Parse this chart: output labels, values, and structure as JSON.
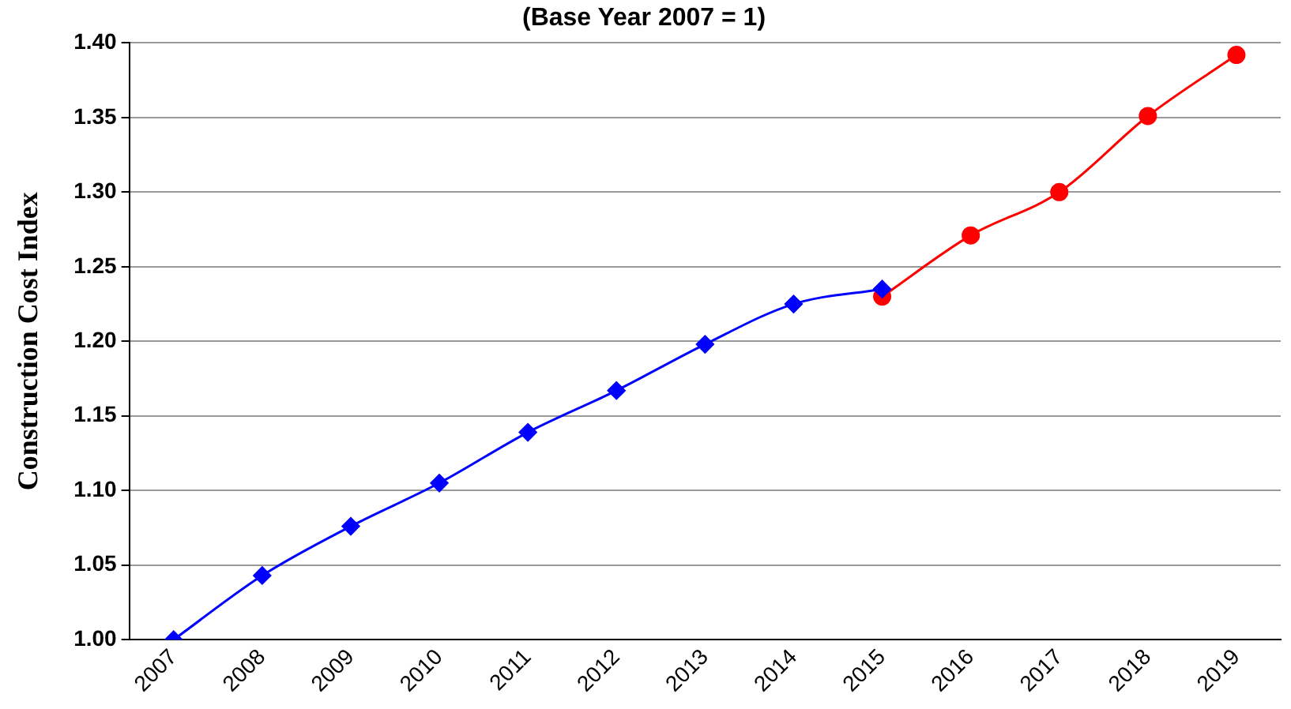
{
  "chart_data": {
    "type": "line",
    "title": "(Base Year 2007 = 1)",
    "ylabel": "Construction Cost Index",
    "categories": [
      "2007",
      "2008",
      "2009",
      "2010",
      "2011",
      "2012",
      "2013",
      "2014",
      "2015",
      "2016",
      "2017",
      "2018",
      "2019"
    ],
    "series": [
      {
        "color": "#0000ff",
        "marker": "diamond",
        "values": [
          1.0,
          1.043,
          1.076,
          1.105,
          1.139,
          1.167,
          1.198,
          1.225,
          1.235,
          null,
          null,
          null,
          null
        ]
      },
      {
        "color": "#ff0000",
        "marker": "circle",
        "values": [
          null,
          null,
          null,
          null,
          null,
          null,
          null,
          null,
          1.23,
          1.271,
          1.3,
          1.351,
          1.392
        ]
      }
    ],
    "ylim": [
      1.0,
      1.4
    ],
    "yticks": [
      {
        "value": 1.0,
        "label": "1.00"
      },
      1.05,
      {
        "value": 1.1,
        "label": "1.10"
      },
      1.15,
      {
        "value": 1.2,
        "label": "1.20"
      },
      1.25,
      {
        "value": 1.3,
        "label": "1.30"
      },
      1.35,
      {
        "value": 1.4,
        "label": "1.40"
      }
    ],
    "grid": "y",
    "legend": false,
    "line_style": "solid"
  }
}
